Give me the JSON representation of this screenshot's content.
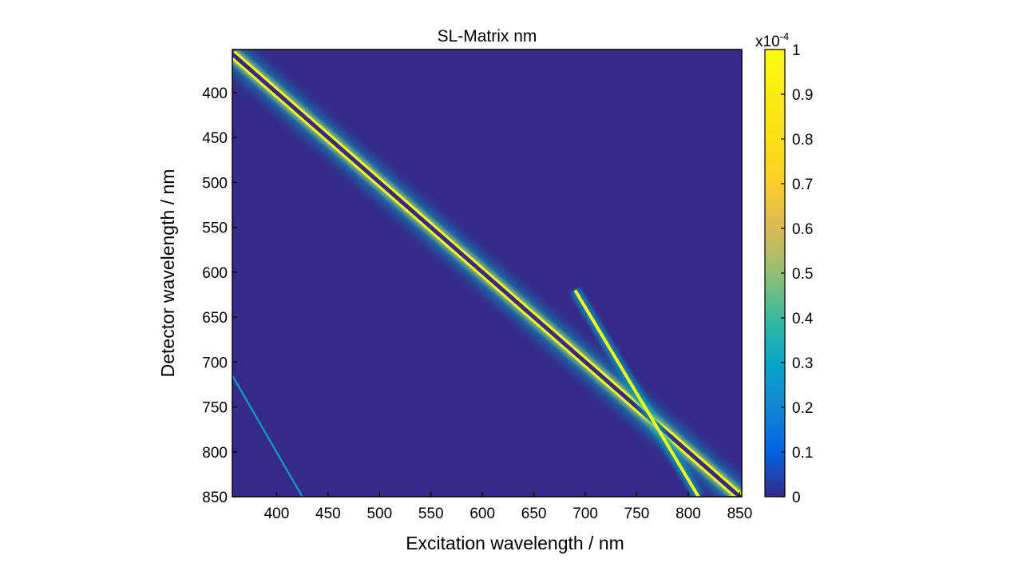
{
  "chart_data": {
    "type": "heatmap",
    "title": "SL-Matrix nm",
    "xlabel": "Excitation wavelength / nm",
    "ylabel": "Detector wavelength / nm",
    "xlim": [
      357,
      852
    ],
    "ylim": [
      352,
      850
    ],
    "y_reversed": true,
    "x_ticks": [
      400,
      450,
      500,
      550,
      600,
      650,
      700,
      750,
      800,
      850
    ],
    "y_ticks": [
      400,
      450,
      500,
      550,
      600,
      650,
      700,
      750,
      800,
      850
    ],
    "colorbar": {
      "exponent_label": "x10",
      "exponent_power": "-4",
      "min": 0,
      "max": 1,
      "ticks": [
        "0",
        "0.1",
        "0.2",
        "0.3",
        "0.4",
        "0.5",
        "0.6",
        "0.7",
        "0.8",
        "0.9",
        "1"
      ],
      "colormap": "parula"
    },
    "background_value": 0.05,
    "features": [
      {
        "name": "main diagonal (excitation = detector, masked)",
        "x": [
          357,
          852
        ],
        "y": [
          357,
          852
        ],
        "center_value": 0,
        "side_value": 1
      },
      {
        "name": "secondary band",
        "x": [
          690,
          810
        ],
        "y": [
          620,
          850
        ],
        "value": 0.9
      },
      {
        "name": "faint band",
        "x": [
          357,
          425
        ],
        "y": [
          715,
          850
        ],
        "value": 0.3
      }
    ]
  }
}
